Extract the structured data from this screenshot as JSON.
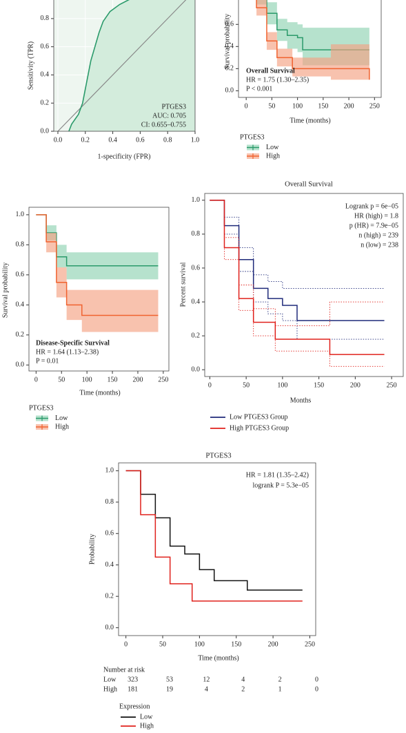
{
  "chart_data": [
    {
      "type": "line",
      "xlabel": "1-specificity (FPR)",
      "ylabel": "Sensitivity (TPR)",
      "annotations": [
        "PTGES3",
        "AUC: 0.705",
        "CI: 0.655–0.755"
      ],
      "xlim": [
        -0.03,
        1
      ],
      "ylim": [
        0,
        1.03
      ],
      "xticks": [
        {
          "value": 0,
          "label": "0.0"
        },
        0.2,
        0.4,
        0.6,
        0.8,
        {
          "value": 1,
          "label": "1.0"
        }
      ],
      "yticks": [
        {
          "value": 0,
          "label": "0.0"
        },
        0.2,
        0.4,
        0.6,
        0.8
      ],
      "grid": true,
      "series": [
        {
          "color": "#2a9a6a",
          "x": [
            0.08,
            0.1,
            0.15,
            0.18,
            0.2,
            0.22,
            0.24,
            0.27,
            0.3,
            0.33,
            0.38,
            0.45,
            0.55,
            0.65,
            0.75,
            1
          ],
          "values": [
            0,
            0.05,
            0.12,
            0.2,
            0.3,
            0.4,
            0.5,
            0.6,
            0.7,
            0.78,
            0.85,
            0.9,
            0.95,
            0.98,
            1,
            1
          ]
        }
      ]
    },
    {
      "type": "survival",
      "xlabel": "Time (months)",
      "ylabel": "Survival probability",
      "annotations": [
        "Overall Survival",
        "HR = 1.75 (1.30–2.35)",
        "P < 0.001"
      ],
      "xlim": [
        -15,
        263
      ],
      "ylim": [
        -0.06,
        1.07
      ],
      "xticks": [
        0,
        50,
        100,
        150,
        200,
        250
      ],
      "yticks": [
        {
          "value": 0,
          "label": "0.0"
        },
        0.2,
        0.4,
        0.6
      ],
      "legend_title": "PTGES3",
      "series": [
        {
          "name": "Low",
          "color": "#2a9a6a",
          "band_color": "#8fd3b2",
          "x": [
            0,
            20,
            40,
            60,
            80,
            100,
            110,
            240
          ],
          "values": [
            1,
            0.85,
            0.7,
            0.55,
            0.5,
            0.48,
            0.37,
            0.37
          ],
          "lower": [
            1,
            0.78,
            0.6,
            0.45,
            0.38,
            0.35,
            0.23,
            0.23
          ],
          "upper": [
            1,
            0.92,
            0.8,
            0.65,
            0.62,
            0.6,
            0.57,
            0.57
          ]
        },
        {
          "name": "High",
          "color": "#f0622f",
          "band_color": "#f4a283",
          "x": [
            0,
            20,
            40,
            60,
            90,
            165,
            240
          ],
          "values": [
            1,
            0.75,
            0.45,
            0.3,
            0.2,
            0.2,
            0.1
          ],
          "lower": [
            1,
            0.68,
            0.37,
            0.22,
            0.13,
            0.1,
            0.03
          ],
          "upper": [
            1,
            0.82,
            0.53,
            0.38,
            0.3,
            0.42,
            0.42
          ]
        }
      ]
    },
    {
      "type": "survival",
      "xlabel": "Time (months)",
      "ylabel": "Survival probability",
      "annotations": [
        "Disease-Specific Survival",
        "HR = 1.64 (1.13–2.38)",
        "P = 0.01"
      ],
      "xlim": [
        -14,
        261
      ],
      "ylim": [
        -0.04,
        1.05
      ],
      "xticks": [
        0,
        50,
        100,
        150,
        200,
        250
      ],
      "yticks": [
        {
          "value": 0,
          "label": "0.0"
        },
        0.2,
        0.4,
        0.6,
        0.8,
        {
          "value": 1,
          "label": "1.0"
        }
      ],
      "legend_title": "PTGES3",
      "series": [
        {
          "name": "Low",
          "color": "#2a9a6a",
          "band_color": "#8fd3b2",
          "x": [
            0,
            20,
            40,
            60,
            240
          ],
          "values": [
            1,
            0.88,
            0.72,
            0.66,
            0.66
          ],
          "lower": [
            1,
            0.83,
            0.65,
            0.57,
            0.57
          ],
          "upper": [
            1,
            0.93,
            0.8,
            0.75,
            0.75
          ]
        },
        {
          "name": "High",
          "color": "#f0622f",
          "band_color": "#f4a283",
          "x": [
            0,
            20,
            40,
            60,
            90,
            240
          ],
          "values": [
            1,
            0.82,
            0.55,
            0.4,
            0.33,
            0.33
          ],
          "lower": [
            1,
            0.75,
            0.45,
            0.3,
            0.22,
            0.22
          ],
          "upper": [
            1,
            0.88,
            0.65,
            0.5,
            0.5,
            0.5
          ]
        }
      ]
    },
    {
      "type": "survival",
      "title": "Overall Survival",
      "xlabel": "Months",
      "ylabel": "Percent survival",
      "annotations": [
        "Logrank p = 6e−05",
        "HR (high) = 1.8",
        "p (HR) = 7.9e−05",
        "n (high) = 239",
        "n (low) = 238"
      ],
      "xlim": [
        -7,
        266
      ],
      "ylim": [
        -0.04,
        1.04
      ],
      "xticks": [
        0,
        50,
        100,
        150,
        200,
        250
      ],
      "yticks": [
        {
          "value": 0,
          "label": "0.0"
        },
        0.2,
        0.4,
        0.6,
        0.8,
        {
          "value": 1,
          "label": "1.0"
        }
      ],
      "series": [
        {
          "name": "Low PTGES3 Group",
          "color": "#1f2a7a",
          "x": [
            0,
            20,
            40,
            60,
            80,
            100,
            120,
            240
          ],
          "values": [
            1,
            0.85,
            0.65,
            0.48,
            0.42,
            0.38,
            0.29,
            0.29
          ],
          "lower": [
            1,
            0.8,
            0.58,
            0.4,
            0.33,
            0.29,
            0.18,
            0.18
          ],
          "upper": [
            1,
            0.9,
            0.72,
            0.56,
            0.52,
            0.48,
            0.48,
            0.48
          ]
        },
        {
          "name": "High PTGES3 Group",
          "color": "#e0201b",
          "x": [
            0,
            20,
            40,
            60,
            90,
            165,
            240
          ],
          "values": [
            1,
            0.72,
            0.42,
            0.28,
            0.18,
            0.09,
            0.09
          ],
          "lower": [
            1,
            0.65,
            0.35,
            0.2,
            0.11,
            0.02,
            0.02
          ],
          "upper": [
            1,
            0.78,
            0.5,
            0.36,
            0.26,
            0.4,
            0.4
          ]
        }
      ]
    },
    {
      "type": "survival",
      "title": "PTGES3",
      "xlabel": "Time (months)",
      "ylabel": "Probability",
      "annotations": [
        "HR = 1.81 (1.35–2.42)",
        "logrank P = 5.3e−05"
      ],
      "xlim": [
        -10,
        258
      ],
      "ylim": [
        -0.05,
        1.05
      ],
      "xticks": [
        0,
        50,
        100,
        150,
        200,
        250
      ],
      "yticks": [
        {
          "value": 0,
          "label": "0.0"
        },
        0.2,
        0.4,
        0.6,
        0.8,
        {
          "value": 1,
          "label": "1.0"
        }
      ],
      "legend_title": "Expression",
      "series": [
        {
          "name": "Low",
          "color": "#111111",
          "x": [
            0,
            20,
            40,
            60,
            80,
            100,
            120,
            165,
            240
          ],
          "values": [
            1,
            0.85,
            0.7,
            0.52,
            0.47,
            0.37,
            0.3,
            0.24,
            0.24
          ]
        },
        {
          "name": "High",
          "color": "#e0201b",
          "x": [
            0,
            20,
            40,
            60,
            90,
            240
          ],
          "values": [
            1,
            0.72,
            0.45,
            0.28,
            0.17,
            0.17
          ]
        }
      ],
      "risk_table": {
        "title": "Number at risk",
        "rows": [
          {
            "name": "Low",
            "color": "#111111",
            "values": [
              323,
              53,
              12,
              4,
              2,
              0
            ]
          },
          {
            "name": "High",
            "color": "#e0201b",
            "values": [
              181,
              19,
              4,
              2,
              1,
              0
            ]
          }
        ]
      }
    }
  ]
}
